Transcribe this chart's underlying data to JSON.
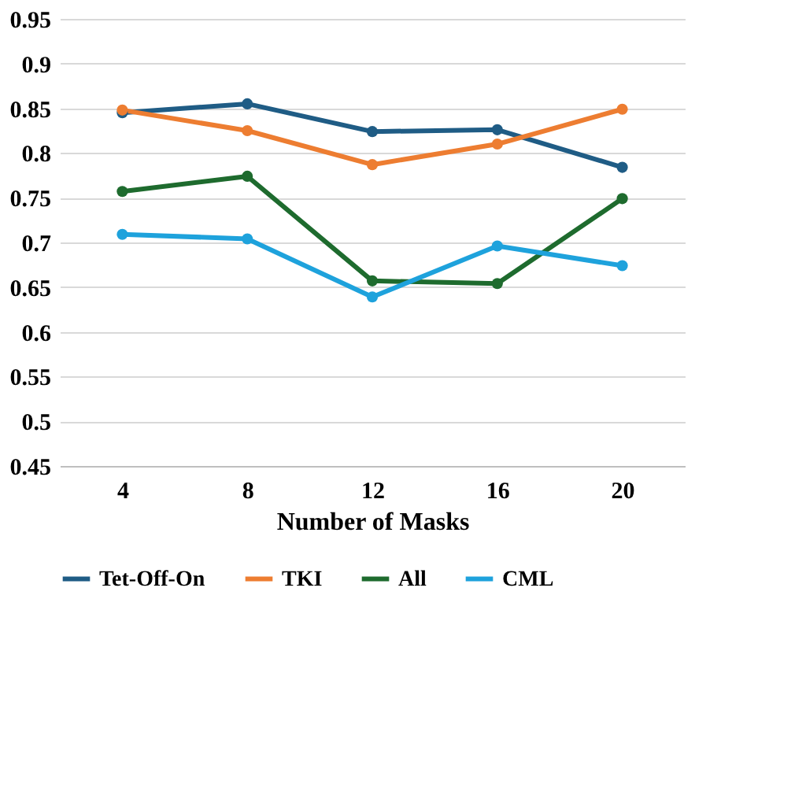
{
  "chart_data": {
    "type": "line",
    "xlabel": "Number of Masks",
    "categories": [
      "4",
      "8",
      "12",
      "16",
      "20"
    ],
    "series": [
      {
        "name": "Tet-Off-On",
        "color": "#1f5c85",
        "values": [
          0.845,
          0.855,
          0.824,
          0.826,
          0.784
        ]
      },
      {
        "name": "TKI",
        "color": "#ed7d31",
        "values": [
          0.848,
          0.825,
          0.787,
          0.81,
          0.849
        ]
      },
      {
        "name": "All",
        "color": "#1e6b2e",
        "values": [
          0.757,
          0.774,
          0.657,
          0.654,
          0.749
        ]
      },
      {
        "name": "CML",
        "color": "#1ea2dc",
        "values": [
          0.709,
          0.704,
          0.639,
          0.696,
          0.674
        ]
      }
    ],
    "ylim": [
      0.45,
      0.95
    ],
    "yticks": [
      0.45,
      0.5,
      0.55,
      0.6,
      0.65,
      0.7,
      0.75,
      0.8,
      0.85,
      0.9,
      0.95
    ],
    "grid": "y",
    "legend": "bottom",
    "marker": "circle",
    "line_style": "solid"
  }
}
